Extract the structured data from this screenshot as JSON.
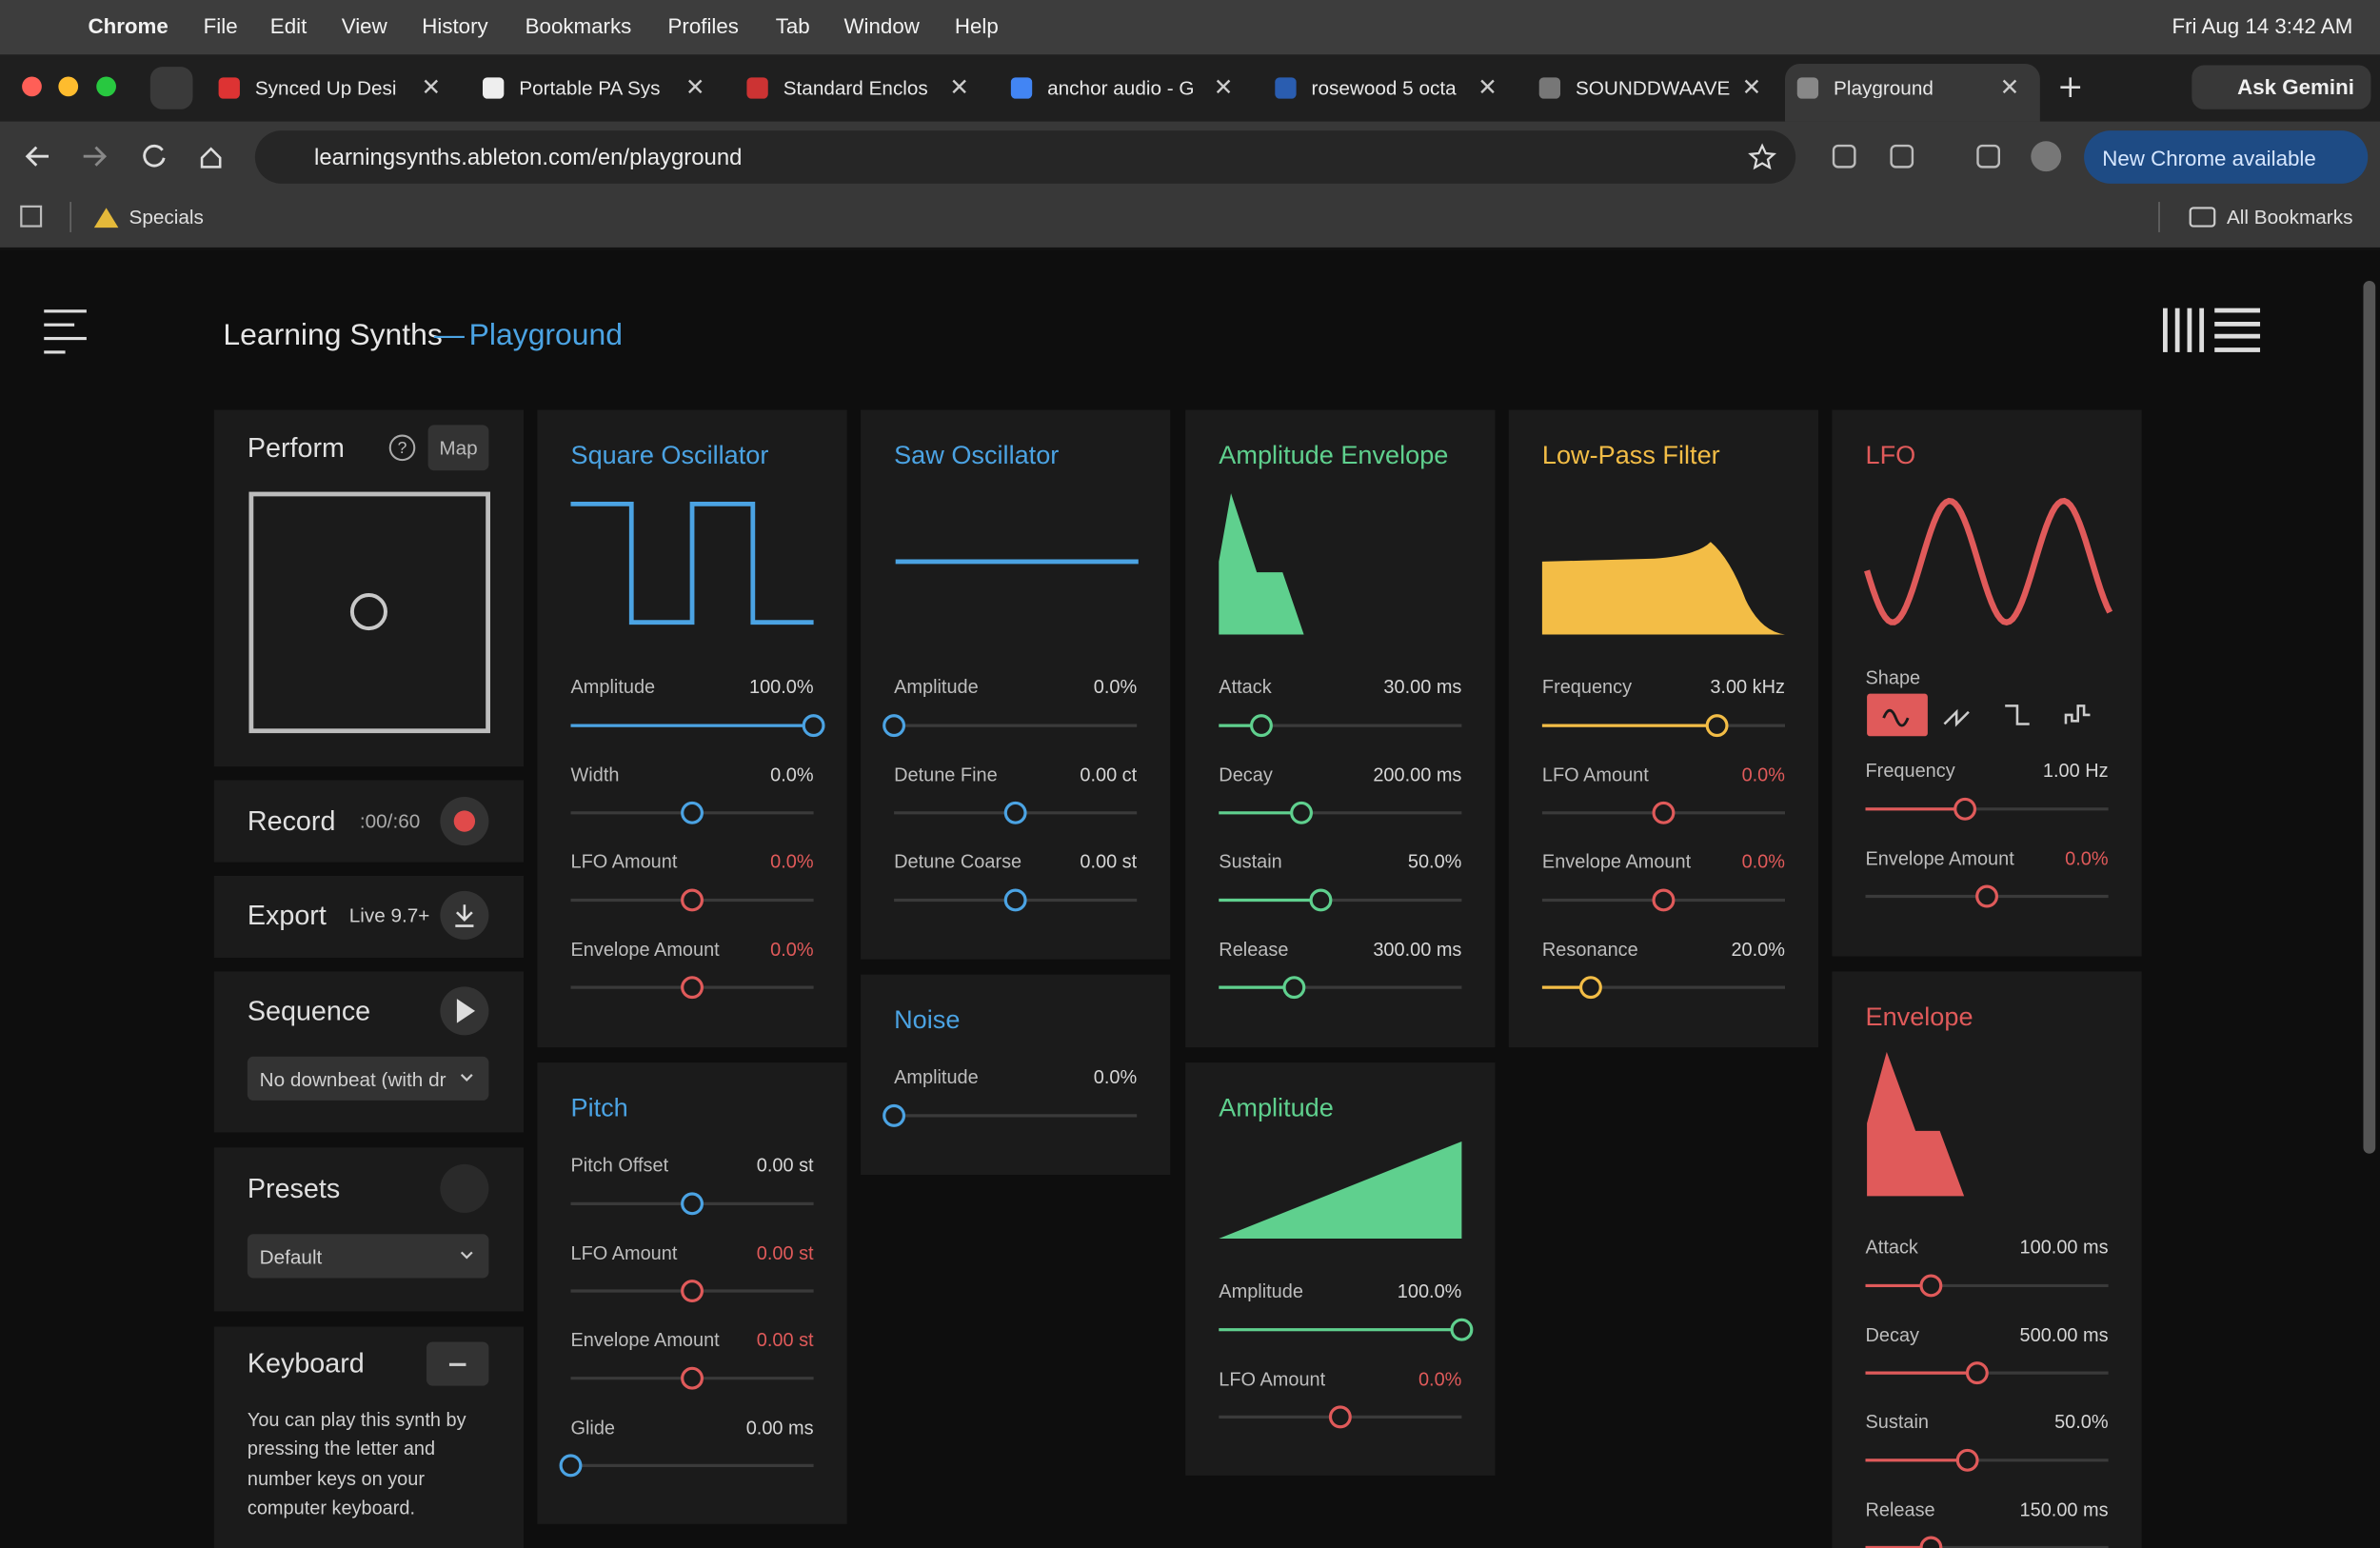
{
  "menu_bar": {
    "app": "Chrome",
    "items": [
      "File",
      "Edit",
      "View",
      "History",
      "Bookmarks",
      "Profiles",
      "Tab",
      "Window",
      "Help"
    ],
    "clock": "Fri Aug 14  3:42 AM"
  },
  "tabs": [
    "Synced Up Desi",
    "Portable PA Sys",
    "Standard Enclos",
    "anchor audio - G",
    "rosewood 5 octa",
    "SOUNDDWAAVE",
    "Playground"
  ],
  "ask_gemini": "Ask Gemini",
  "address_bar": {
    "url": "learningsynths.ableton.com/en/playground",
    "update": "New Chrome available"
  },
  "bookmarks": {
    "items": [
      "Specials"
    ],
    "all": "All Bookmarks"
  },
  "header": {
    "title": "Learning Synths",
    "separator": "—",
    "subtitle": "Playground"
  },
  "sidebar": {
    "perform": {
      "title": "Perform",
      "help": "?",
      "map": "Map"
    },
    "record": {
      "title": "Record",
      "time": ":00/:60"
    },
    "export": {
      "title": "Export",
      "format": "Live 9.7+"
    },
    "sequence": {
      "title": "Sequence",
      "select": "No downbeat (with dr"
    },
    "presets": {
      "title": "Presets",
      "select": "Default"
    },
    "keyboard": {
      "title": "Keyboard",
      "text": "You can play this synth by pressing the letter and number keys on your computer keyboard."
    }
  },
  "modules": [
    {
      "title": "Square Oscillator",
      "color": "#4ba3e3",
      "params": [
        {
          "label": "Amplitude",
          "value": "100.0%"
        },
        {
          "label": "Width",
          "value": "0.0%"
        },
        {
          "label": "LFO Amount",
          "value": "0.0%"
        },
        {
          "label": "Envelope Amount",
          "value": "0.0%"
        }
      ]
    },
    {
      "title": "Pitch",
      "color": "#4ba3e3",
      "params": [
        {
          "label": "Pitch Offset",
          "value": "0.00 st"
        },
        {
          "label": "LFO Amount",
          "value": "0.00 st"
        },
        {
          "label": "Envelope Amount",
          "value": "0.00 st"
        },
        {
          "label": "Glide",
          "value": "0.00 ms"
        }
      ]
    },
    {
      "title": "Saw Oscillator",
      "color": "#4ba3e3",
      "params": [
        {
          "label": "Amplitude",
          "value": "0.0%"
        },
        {
          "label": "Detune Fine",
          "value": "0.00 ct"
        },
        {
          "label": "Detune Coarse",
          "value": "0.00 st"
        }
      ]
    },
    {
      "title": "Noise",
      "color": "#4ba3e3",
      "params": [
        {
          "label": "Amplitude",
          "value": "0.0%"
        }
      ]
    },
    {
      "title": "Amplitude Envelope",
      "color": "#5fd08e",
      "params": [
        {
          "label": "Attack",
          "value": "30.00 ms"
        },
        {
          "label": "Decay",
          "value": "200.00 ms"
        },
        {
          "label": "Sustain",
          "value": "50.0%"
        },
        {
          "label": "Release",
          "value": "300.00 ms"
        }
      ]
    },
    {
      "title": "Amplitude",
      "color": "#5fd08e",
      "params": [
        {
          "label": "Amplitude",
          "value": "100.0%"
        },
        {
          "label": "LFO Amount",
          "value": "0.0%"
        }
      ]
    },
    {
      "title": "Low-Pass Filter",
      "color": "#f3bd46",
      "params": [
        {
          "label": "Frequency",
          "value": "3.00 kHz"
        },
        {
          "label": "LFO Amount",
          "value": "0.0%"
        },
        {
          "label": "Envelope Amount",
          "value": "0.0%"
        },
        {
          "label": "Resonance",
          "value": "20.0%"
        }
      ]
    },
    {
      "title": "LFO",
      "color": "#e05a5a",
      "shape_label": "Shape",
      "params": [
        {
          "label": "Frequency",
          "value": "1.00 Hz"
        },
        {
          "label": "Envelope Amount",
          "value": "0.0%"
        }
      ]
    },
    {
      "title": "Envelope",
      "color": "#e05a5a",
      "params": [
        {
          "label": "Attack",
          "value": "100.00 ms"
        },
        {
          "label": "Decay",
          "value": "500.00 ms"
        },
        {
          "label": "Sustain",
          "value": "50.0%"
        },
        {
          "label": "Release",
          "value": "150.00 ms"
        }
      ]
    }
  ]
}
